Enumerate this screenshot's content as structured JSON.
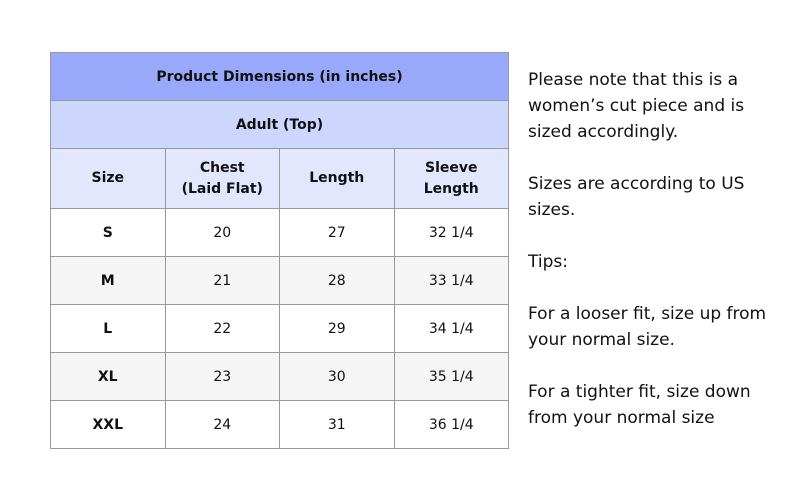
{
  "table": {
    "title": "Product Dimensions (in inches)",
    "subtitle": "Adult (Top)",
    "headers": [
      {
        "line1": "Size",
        "line2": ""
      },
      {
        "line1": "Chest",
        "line2": "(Laid Flat)"
      },
      {
        "line1": "Length",
        "line2": ""
      },
      {
        "line1": "Sleeve",
        "line2": "Length"
      }
    ],
    "rows": [
      [
        "S",
        "20",
        "27",
        "32 1/4"
      ],
      [
        "M",
        "21",
        "28",
        "33 1/4"
      ],
      [
        "L",
        "22",
        "29",
        "34 1/4"
      ],
      [
        "XL",
        "23",
        "30",
        "35 1/4"
      ],
      [
        "XXL",
        "24",
        "31",
        "36 1/4"
      ]
    ]
  },
  "notes": [
    "Please note that this is a women’s cut piece and is sized accordingly.",
    "Sizes are according to US sizes.",
    "Tips:",
    "For a looser fit, size up from your normal size.",
    "For a tighter fit, size down from your normal size"
  ]
}
